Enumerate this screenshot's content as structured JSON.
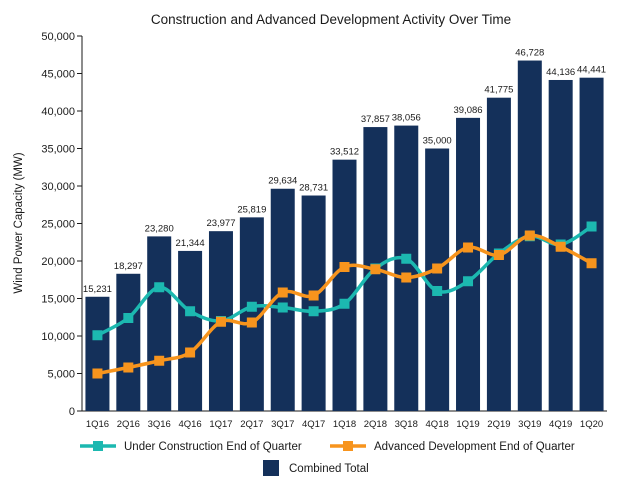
{
  "chart_data": {
    "type": "bar",
    "title": "Construction and Advanced Development Activity Over Time",
    "xlabel": "",
    "ylabel": "Wind Power Capacity (MW)",
    "ylim": [
      0,
      50000
    ],
    "y_ticks": [
      "0",
      "5,000",
      "10,000",
      "15,000",
      "20,000",
      "25,000",
      "30,000",
      "35,000",
      "40,000",
      "45,000",
      "50,000"
    ],
    "y_tick_values": [
      0,
      5000,
      10000,
      15000,
      20000,
      25000,
      30000,
      35000,
      40000,
      45000,
      50000
    ],
    "grid": false,
    "legend_position": "bottom",
    "categories": [
      "1Q16",
      "2Q16",
      "3Q16",
      "4Q16",
      "1Q17",
      "2Q17",
      "3Q17",
      "4Q17",
      "1Q18",
      "2Q18",
      "3Q18",
      "4Q18",
      "1Q19",
      "2Q19",
      "3Q19",
      "4Q19",
      "1Q20"
    ],
    "series": [
      {
        "name": "Combined Total",
        "kind": "bar",
        "color": "#14305a",
        "values": [
          15231,
          18297,
          23280,
          21344,
          23977,
          25819,
          29634,
          28731,
          33512,
          37857,
          38056,
          35000,
          39086,
          41775,
          46728,
          44136,
          44441
        ],
        "labels": [
          "15,231",
          "18,297",
          "23,280",
          "21,344",
          "23,977",
          "25,819",
          "29,634",
          "28,731",
          "33,512",
          "37,857",
          "38,056",
          "35,000",
          "39,086",
          "41,775",
          "46,728",
          "44,136",
          "44,441"
        ]
      },
      {
        "name": "Under Construction End of Quarter",
        "kind": "line",
        "color": "#1cb8b0",
        "values": [
          10100,
          12400,
          16500,
          13300,
          12000,
          13900,
          13800,
          13300,
          14300,
          19000,
          20300,
          16000,
          17300,
          21000,
          23300,
          22200,
          24600
        ]
      },
      {
        "name": "Advanced Development End of Quarter",
        "kind": "line",
        "color": "#f7941d",
        "values": [
          5000,
          5800,
          6700,
          7800,
          11900,
          11800,
          15800,
          15400,
          19200,
          18900,
          17800,
          19000,
          21800,
          20800,
          23400,
          21900,
          19700
        ]
      }
    ]
  }
}
